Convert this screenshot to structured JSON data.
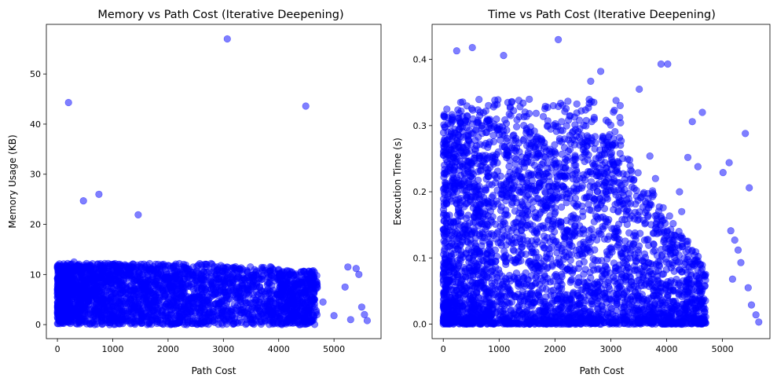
{
  "chart_data": [
    {
      "type": "scatter",
      "title": "Memory vs Path Cost (Iterative Deepening)",
      "xlabel": "Path Cost",
      "ylabel": "Memory Usage (KB)",
      "xlim": [
        -200,
        5850
      ],
      "ylim": [
        -2.8,
        59.9
      ],
      "xticks": [
        0,
        1000,
        2000,
        3000,
        4000,
        5000
      ],
      "xtick_labels": [
        "0",
        "1000",
        "2000",
        "3000",
        "4000",
        "5000"
      ],
      "yticks": [
        0,
        10,
        20,
        30,
        40,
        50
      ],
      "ytick_labels": [
        "0",
        "10",
        "20",
        "30",
        "40",
        "50"
      ],
      "marker_color": "#0000ff",
      "marker_alpha": 0.5,
      "grid": false,
      "outliers": [
        {
          "x": 200,
          "y": 44.3
        },
        {
          "x": 470,
          "y": 24.7
        },
        {
          "x": 750,
          "y": 26.0
        },
        {
          "x": 1460,
          "y": 21.9
        },
        {
          "x": 3070,
          "y": 57.0
        },
        {
          "x": 4490,
          "y": 43.6
        }
      ],
      "bulk": {
        "description_note": "dense cluster",
        "x_range": [
          0,
          5650
        ],
        "y_range": [
          0,
          12.5
        ],
        "sample_points": [
          {
            "x": 300,
            "y": 12.5
          },
          {
            "x": 1000,
            "y": 12.0
          },
          {
            "x": 2000,
            "y": 11.8
          },
          {
            "x": 3000,
            "y": 11.5
          },
          {
            "x": 4000,
            "y": 11.0
          },
          {
            "x": 4400,
            "y": 10.5
          },
          {
            "x": 4600,
            "y": 10.0
          },
          {
            "x": 4650,
            "y": 5.0
          },
          {
            "x": 4800,
            "y": 4.5
          },
          {
            "x": 5000,
            "y": 1.8
          },
          {
            "x": 5200,
            "y": 7.5
          },
          {
            "x": 5250,
            "y": 11.5
          },
          {
            "x": 5300,
            "y": 1.0
          },
          {
            "x": 5400,
            "y": 11.2
          },
          {
            "x": 5450,
            "y": 10.0
          },
          {
            "x": 5500,
            "y": 3.5
          },
          {
            "x": 5550,
            "y": 2.0
          },
          {
            "x": 5600,
            "y": 0.8
          }
        ]
      }
    },
    {
      "type": "scatter",
      "title": "Time vs Path Cost (Iterative Deepening)",
      "xlabel": "Path Cost",
      "ylabel": "Execution Time (s)",
      "xlim": [
        -200,
        5850
      ],
      "ylim": [
        -0.022,
        0.453
      ],
      "xticks": [
        0,
        1000,
        2000,
        3000,
        4000,
        5000
      ],
      "xtick_labels": [
        "0",
        "1000",
        "2000",
        "3000",
        "4000",
        "5000"
      ],
      "yticks": [
        0.0,
        0.1,
        0.2,
        0.3,
        0.4
      ],
      "ytick_labels": [
        "0.0",
        "0.1",
        "0.2",
        "0.3",
        "0.4"
      ],
      "marker_color": "#0000ff",
      "marker_alpha": 0.5,
      "grid": false,
      "outliers": [
        {
          "x": 2060,
          "y": 0.43
        },
        {
          "x": 240,
          "y": 0.413
        },
        {
          "x": 520,
          "y": 0.418
        },
        {
          "x": 1080,
          "y": 0.406
        },
        {
          "x": 3900,
          "y": 0.393
        },
        {
          "x": 4020,
          "y": 0.393
        },
        {
          "x": 2820,
          "y": 0.382
        },
        {
          "x": 2640,
          "y": 0.367
        },
        {
          "x": 3510,
          "y": 0.355
        },
        {
          "x": 5410,
          "y": 0.288
        },
        {
          "x": 5120,
          "y": 0.244
        },
        {
          "x": 5010,
          "y": 0.229
        },
        {
          "x": 5480,
          "y": 0.206
        },
        {
          "x": 4460,
          "y": 0.306
        },
        {
          "x": 4640,
          "y": 0.32
        },
        {
          "x": 5220,
          "y": 0.127
        },
        {
          "x": 5280,
          "y": 0.112
        },
        {
          "x": 5330,
          "y": 0.093
        },
        {
          "x": 5150,
          "y": 0.141
        },
        {
          "x": 4560,
          "y": 0.238
        },
        {
          "x": 4380,
          "y": 0.252
        },
        {
          "x": 3700,
          "y": 0.254
        },
        {
          "x": 3800,
          "y": 0.22
        },
        {
          "x": 4270,
          "y": 0.17
        },
        {
          "x": 4230,
          "y": 0.2
        },
        {
          "x": 5460,
          "y": 0.055
        },
        {
          "x": 5600,
          "y": 0.014
        },
        {
          "x": 5650,
          "y": 0.003
        },
        {
          "x": 5520,
          "y": 0.029
        },
        {
          "x": 5180,
          "y": 0.068
        }
      ],
      "bulk": {
        "description_note": "dense triangular cluster",
        "x_range": [
          0,
          4700
        ],
        "y_range": [
          0.0,
          0.35
        ]
      }
    }
  ]
}
